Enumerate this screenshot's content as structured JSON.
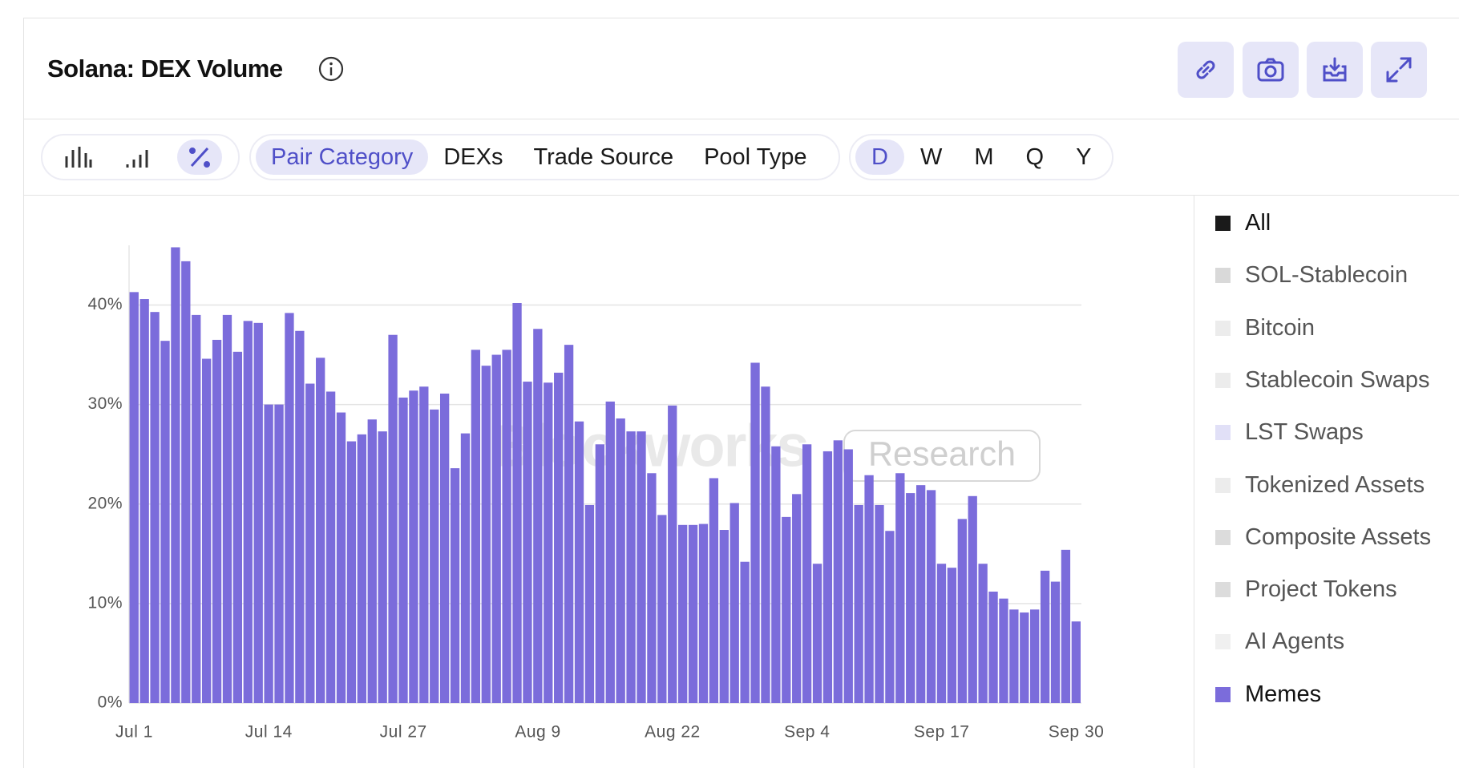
{
  "header": {
    "title": "Solana: DEX Volume"
  },
  "toolbar": {
    "tabs": [
      "Pair Category",
      "DEXs",
      "Trade Source",
      "Pool Type"
    ],
    "periods": [
      "D",
      "W",
      "M",
      "Q",
      "Y"
    ]
  },
  "chart_data": {
    "type": "bar",
    "watermark": [
      "Blockworks",
      "Research"
    ],
    "categories": [
      "Jul 1",
      null,
      null,
      null,
      null,
      null,
      null,
      null,
      null,
      null,
      null,
      null,
      null,
      "Jul 14",
      null,
      null,
      null,
      null,
      null,
      null,
      null,
      null,
      null,
      null,
      null,
      null,
      "Jul 27",
      null,
      null,
      null,
      null,
      null,
      null,
      null,
      null,
      null,
      null,
      null,
      null,
      "Aug 9",
      null,
      null,
      null,
      null,
      null,
      null,
      null,
      null,
      null,
      null,
      null,
      null,
      "Aug 22",
      null,
      null,
      null,
      null,
      null,
      null,
      null,
      null,
      null,
      null,
      null,
      null,
      "Sep 4",
      null,
      null,
      null,
      null,
      null,
      null,
      null,
      null,
      null,
      null,
      null,
      null,
      "Sep 17",
      null,
      null,
      null,
      null,
      null,
      null,
      null,
      null,
      null,
      null,
      null,
      null,
      "Sep 30"
    ],
    "series": [
      {
        "name": "Memes",
        "color": "#7b6cdb",
        "values": [
          41.3,
          40.6,
          39.3,
          36.4,
          45.8,
          44.4,
          39.0,
          34.6,
          36.5,
          39.0,
          35.3,
          38.4,
          38.2,
          30.0,
          30.0,
          39.2,
          37.4,
          32.1,
          34.7,
          31.3,
          29.2,
          26.3,
          27.0,
          28.5,
          27.3,
          37.0,
          30.7,
          31.4,
          31.8,
          29.5,
          31.1,
          23.6,
          27.1,
          35.5,
          33.9,
          35.0,
          35.5,
          40.2,
          32.3,
          37.6,
          32.2,
          33.2,
          36.0,
          28.3,
          19.9,
          26.0,
          30.3,
          28.6,
          27.3,
          27.3,
          23.1,
          18.9,
          29.9,
          17.9,
          17.9,
          18.0,
          22.6,
          17.4,
          20.1,
          14.2,
          34.2,
          31.8,
          25.8,
          18.7,
          21.0,
          26.0,
          14.0,
          25.3,
          26.4,
          25.5,
          19.9,
          22.9,
          19.9,
          17.3,
          23.1,
          21.1,
          21.9,
          21.4,
          14.0,
          13.6,
          18.5,
          20.8,
          14.0,
          11.2,
          10.5,
          9.4,
          9.1,
          9.4,
          13.3,
          12.2,
          15.4,
          8.2
        ]
      }
    ],
    "legend_items": [
      {
        "name": "All",
        "color": "#1a1a1a"
      },
      {
        "name": "SOL-Stablecoin",
        "color": "#d9d9d9"
      },
      {
        "name": "Bitcoin",
        "color": "#ececec"
      },
      {
        "name": "Stablecoin Swaps",
        "color": "#ececec"
      },
      {
        "name": "LST Swaps",
        "color": "#e1e0f7"
      },
      {
        "name": "Tokenized Assets",
        "color": "#ececec"
      },
      {
        "name": "Composite Assets",
        "color": "#dcdcdc"
      },
      {
        "name": "Project Tokens",
        "color": "#dcdcdc"
      },
      {
        "name": "AI Agents",
        "color": "#f0f0f0"
      }
    ],
    "ylim": [
      0,
      46
    ],
    "yticks": [
      {
        "value": 0,
        "label": "0%"
      },
      {
        "value": 10,
        "label": "10%"
      },
      {
        "value": 20,
        "label": "20%"
      },
      {
        "value": 30,
        "label": "30%"
      },
      {
        "value": 40,
        "label": "40%"
      }
    ],
    "grid": true
  }
}
